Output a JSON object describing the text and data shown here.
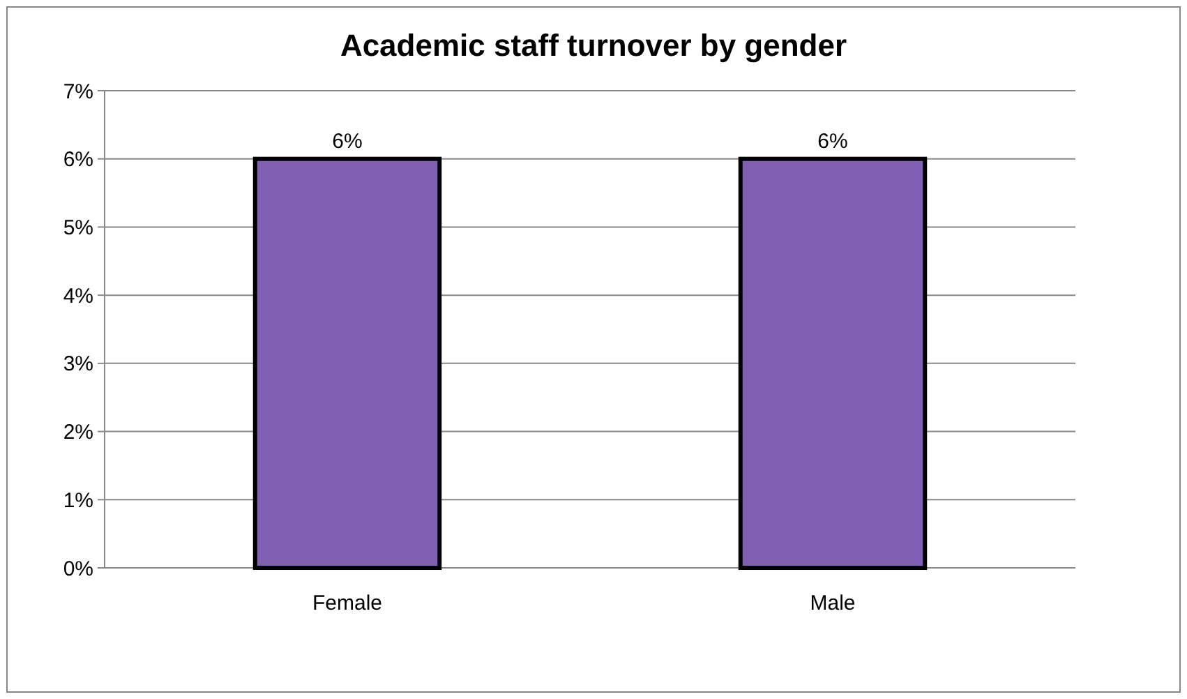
{
  "chart_data": {
    "type": "bar",
    "title": "Academic staff turnover by gender",
    "categories": [
      "Female",
      "Male"
    ],
    "values": [
      6,
      6
    ],
    "color": "#7f5fb2",
    "value_labels": [
      "6%",
      "6%"
    ],
    "ylim": [
      0,
      7
    ],
    "yticks": [
      {
        "value": 0,
        "label": "0%"
      },
      {
        "value": 1,
        "label": "1%"
      },
      {
        "value": 2,
        "label": "2%"
      },
      {
        "value": 3,
        "label": "3%"
      },
      {
        "value": 4,
        "label": "4%"
      },
      {
        "value": 5,
        "label": "5%"
      },
      {
        "value": 6,
        "label": "6%"
      },
      {
        "value": 7,
        "label": "7%"
      }
    ],
    "grid": "y"
  }
}
